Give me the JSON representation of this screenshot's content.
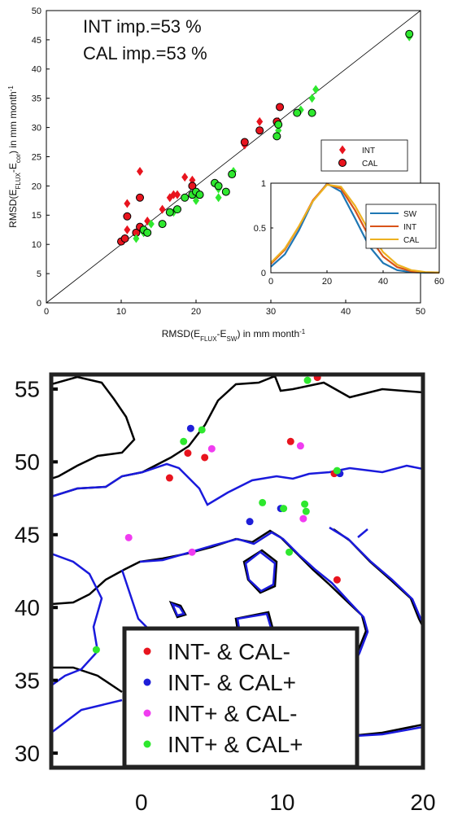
{
  "chart_data": [
    {
      "type": "scatter",
      "annotations": [
        "INT imp.=53 %",
        "CAL imp.=53 %"
      ],
      "xlabel": [
        "RMSD(E",
        "FLUX",
        "-E",
        "SW",
        ") in mm month",
        "-1"
      ],
      "ylabel": [
        "RMSD(E",
        "FLUX",
        "-E",
        "cor",
        ") in mm month",
        "-1"
      ],
      "xlim": [
        0,
        50
      ],
      "ylim": [
        0,
        50
      ],
      "xticks": [
        0,
        10,
        20,
        30,
        40,
        50
      ],
      "yticks": [
        0,
        5,
        10,
        15,
        20,
        25,
        30,
        35,
        40,
        45,
        50
      ],
      "identity_line": true,
      "legend": "upper right",
      "series": [
        {
          "name": "INT",
          "color": "#e8141e",
          "marker": "diamond",
          "x": [
            10.5,
            10.8,
            10.8,
            12.5,
            13.5,
            15.5,
            16.5,
            17,
            17.5,
            18.5,
            19.5,
            26.5,
            28.5,
            31
          ],
          "values": [
            11,
            12.5,
            17,
            22.5,
            14,
            16,
            18,
            18.5,
            18.5,
            21.5,
            21,
            27,
            31,
            31
          ]
        },
        {
          "name": "CAL",
          "color": "#e8141e",
          "marker": "circle",
          "x": [
            10,
            10.5,
            10.8,
            12,
            12.5,
            12.5,
            19.5,
            26.5,
            28.5,
            30.8,
            31.2
          ],
          "values": [
            10.5,
            11,
            14.8,
            12,
            13,
            18,
            20,
            27.5,
            29.5,
            31,
            33.5
          ]
        },
        {
          "color": "#2ee82e",
          "marker": "diamond",
          "x": [
            12,
            13,
            14,
            17,
            20,
            23,
            23,
            25,
            31,
            31,
            34,
            35.5,
            36,
            48.5
          ],
          "values": [
            11,
            12,
            13.5,
            15.5,
            17.5,
            19.5,
            18,
            22.5,
            29.5,
            30.5,
            33,
            35,
            36.5,
            45.5
          ]
        },
        {
          "color": "#2ee82e",
          "marker": "circle",
          "x": [
            13,
            13.5,
            15.5,
            16.5,
            17.5,
            18.5,
            19.5,
            20,
            20.5,
            22.5,
            23,
            24,
            24.8,
            30.8,
            31,
            33.5,
            35.5,
            48.5
          ],
          "values": [
            12.5,
            12,
            13.5,
            15.5,
            16,
            18,
            18.5,
            19,
            18.5,
            20.5,
            20,
            19,
            22,
            28.5,
            30.5,
            32.5,
            32.5,
            46
          ]
        }
      ]
    },
    {
      "type": "line",
      "x": [
        0,
        5,
        10,
        15,
        20,
        25,
        30,
        35,
        40,
        45,
        50,
        55,
        60
      ],
      "xlim": [
        0,
        60
      ],
      "ylim": [
        0,
        1
      ],
      "xticks": [
        0,
        20,
        40,
        60
      ],
      "yticks": [
        0,
        0.5,
        1
      ],
      "legend": "right",
      "series": [
        {
          "name": "SW",
          "color": "#1f77b4",
          "values": [
            0.066,
            0.206,
            0.474,
            0.8,
            0.994,
            0.906,
            0.607,
            0.298,
            0.108,
            0.029,
            0.006,
            0.001,
            0
          ]
        },
        {
          "name": "INT",
          "color": "#d95319",
          "values": [
            0.099,
            0.257,
            0.516,
            0.81,
            0.989,
            0.94,
            0.697,
            0.402,
            0.181,
            0.063,
            0.017,
            0.004,
            0.001
          ]
        },
        {
          "name": "CAL",
          "color": "#edb120",
          "values": [
            0.111,
            0.27,
            0.52,
            0.8,
            0.982,
            0.96,
            0.748,
            0.465,
            0.23,
            0.091,
            0.029,
            0.007,
            0.002
          ]
        }
      ]
    },
    {
      "type": "map",
      "xlim": [
        -6.4,
        20
      ],
      "ylim": [
        29,
        56
      ],
      "xticks": [
        0,
        10,
        20
      ],
      "yticks": [
        30,
        35,
        40,
        45,
        50,
        55
      ],
      "legend": "lower center",
      "series": [
        {
          "name": "INT- & CAL-",
          "color": "#e8141e",
          "x": [
            12.5,
            3.3,
            4.5,
            2.0,
            10.6,
            13.7,
            13.9
          ],
          "values": [
            55.8,
            50.6,
            50.3,
            48.9,
            51.4,
            49.2,
            41.9
          ]
        },
        {
          "name": "INT- & CAL+",
          "color": "#1f1fd8",
          "x": [
            3.5,
            7.7,
            14.1,
            9.9
          ],
          "values": [
            52.3,
            45.9,
            49.2,
            46.8
          ]
        },
        {
          "name": "INT+ & CAL-",
          "color": "#f03cf0",
          "x": [
            -0.9,
            3.6,
            5.0,
            11.3,
            11.5
          ],
          "values": [
            44.8,
            43.8,
            50.9,
            51.1,
            46.1
          ]
        },
        {
          "name": "INT+ & CAL+",
          "color": "#2ee82e",
          "x": [
            11.8,
            4.3,
            3.0,
            8.6,
            10.1,
            11.6,
            11.7,
            10.5,
            13.9,
            -3.2
          ],
          "values": [
            55.6,
            52.2,
            51.4,
            47.2,
            46.8,
            47.1,
            46.6,
            43.8,
            49.4,
            37.1
          ]
        }
      ]
    }
  ]
}
